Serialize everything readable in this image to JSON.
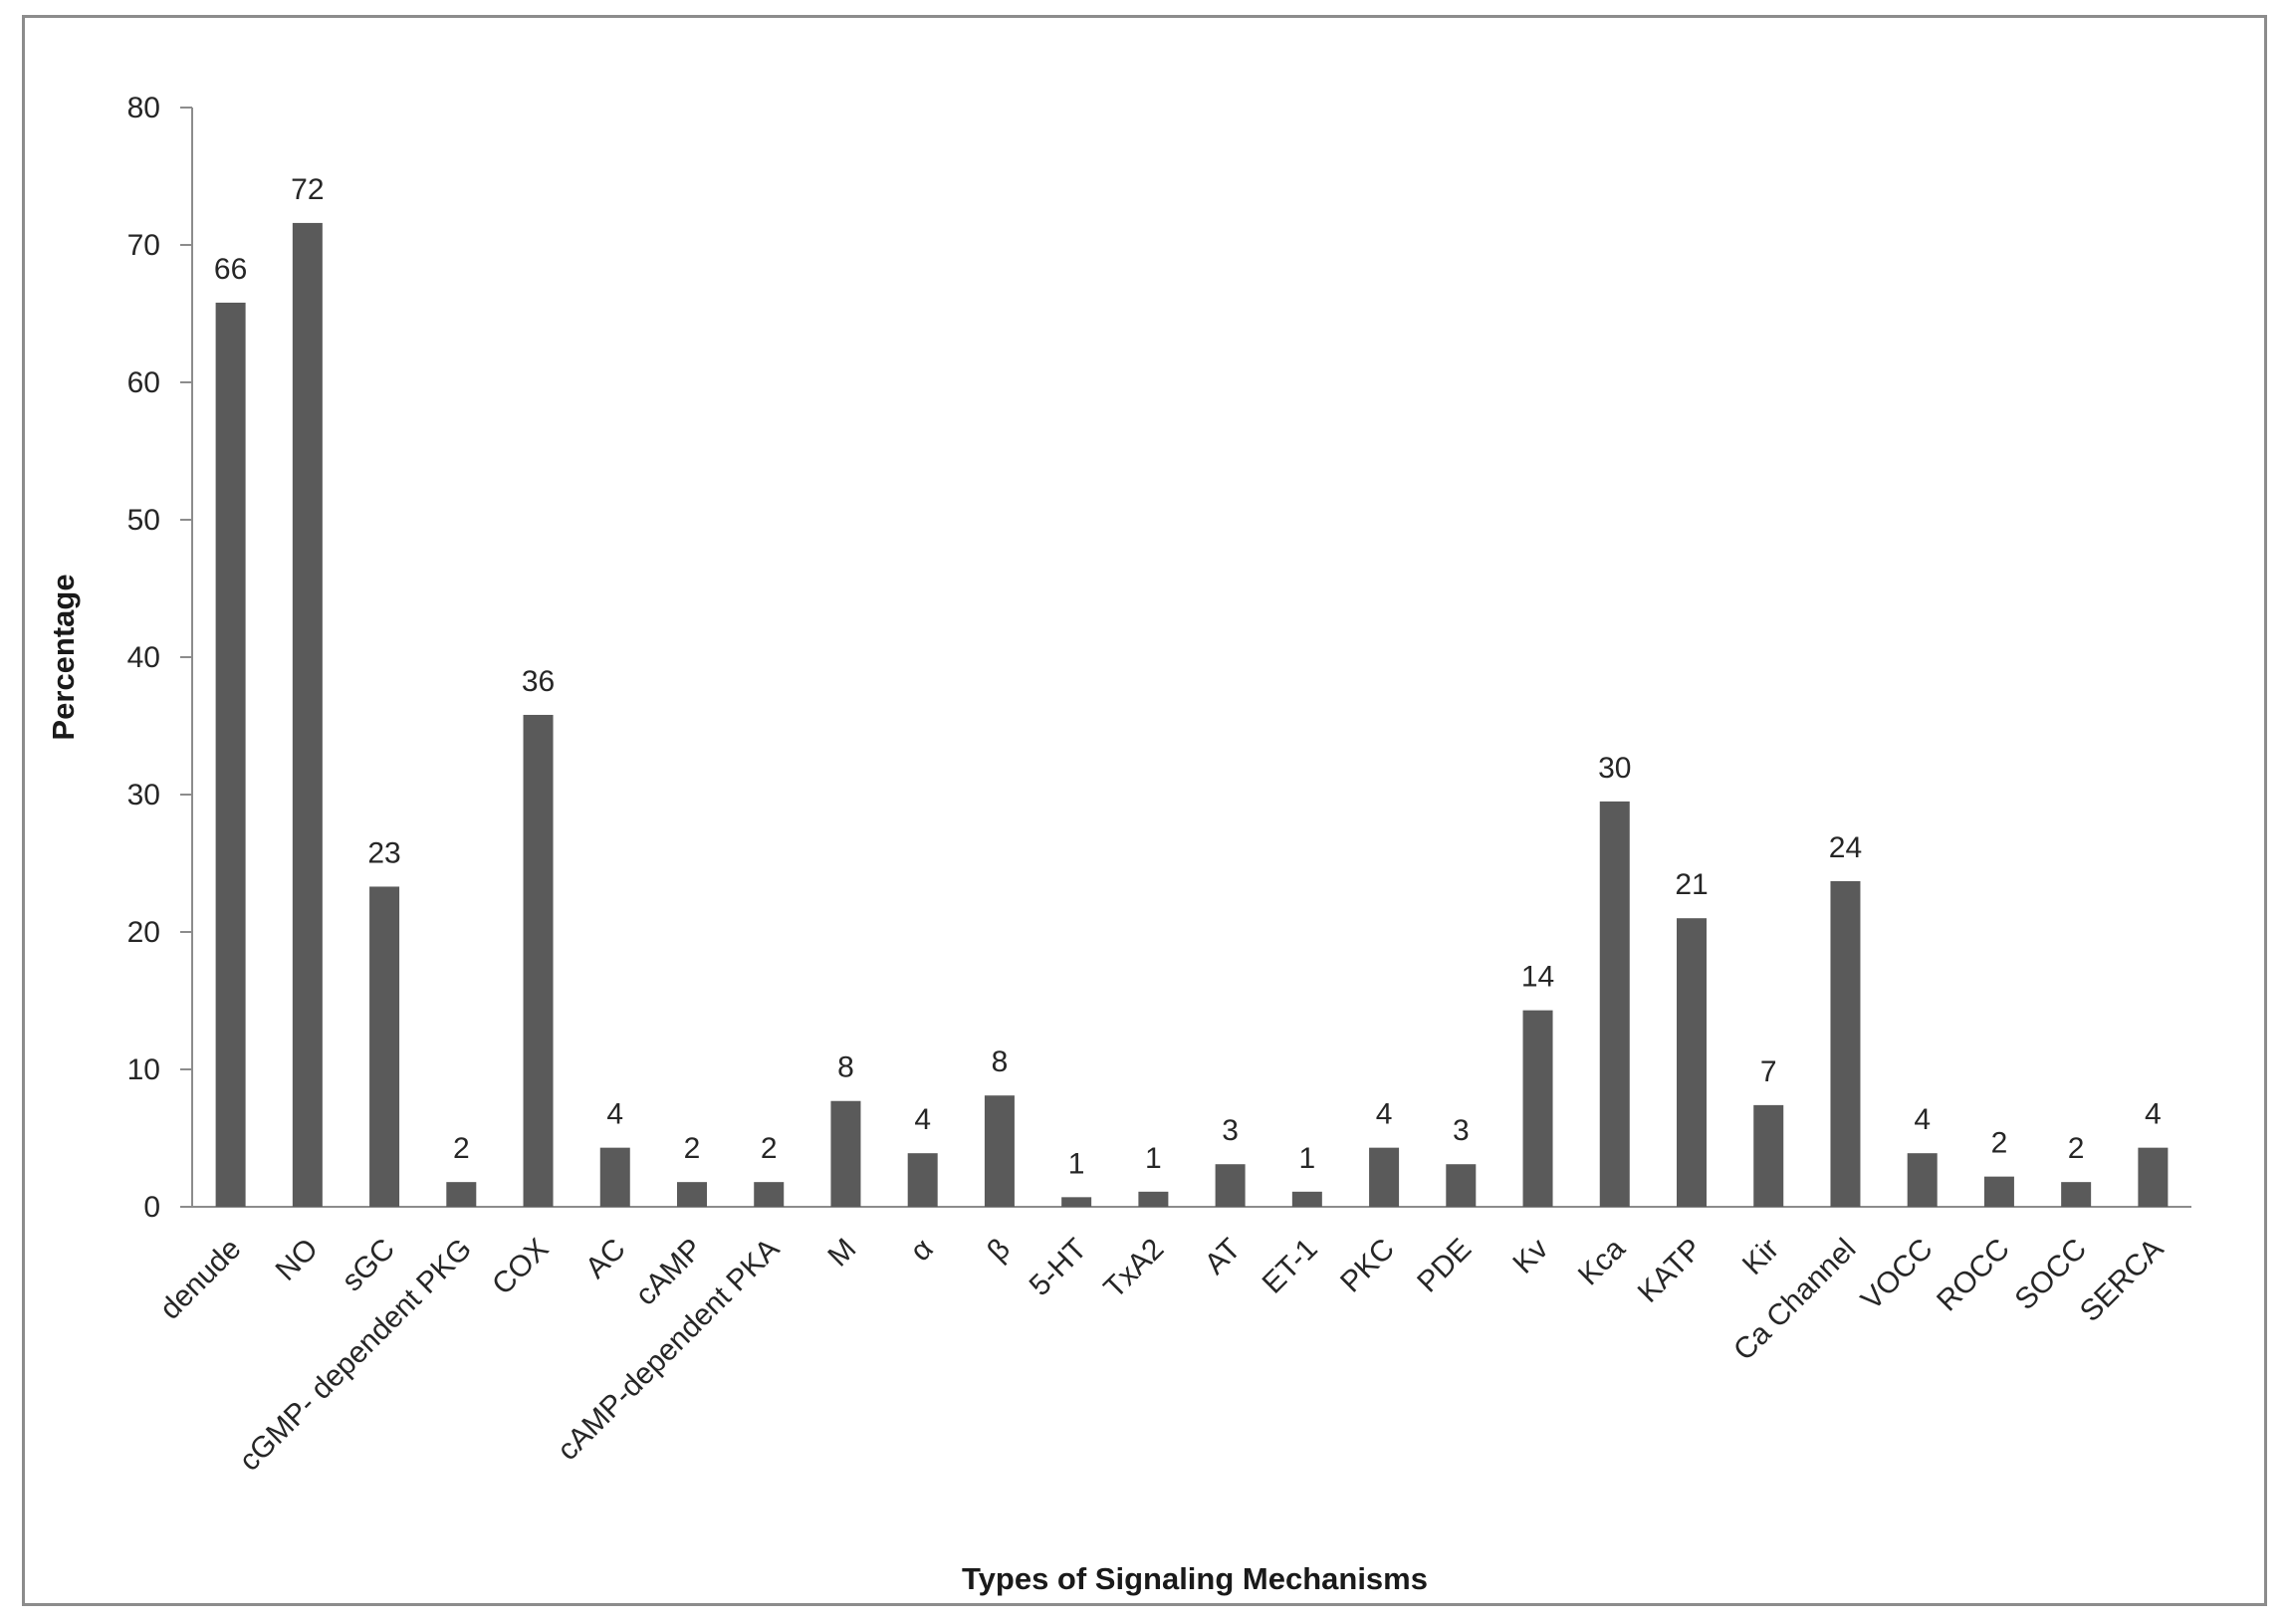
{
  "chart_data": {
    "type": "bar",
    "title": "",
    "xlabel": "Types of Signaling Mechanisms",
    "ylabel": "Percentage",
    "ylim": [
      0,
      80
    ],
    "yticks": [
      0,
      10,
      20,
      30,
      40,
      50,
      60,
      70,
      80
    ],
    "grid": false,
    "legend": "none",
    "bar_color": "#5a5a5a",
    "categories": [
      "denude",
      "NO",
      "sGC",
      "cGMP- dependent PKG",
      "COX",
      "AC",
      "cAMP",
      "cAMP-dependent PKA",
      "M",
      "α",
      "β",
      "5-HT",
      "TxA2",
      "AT",
      "ET-1",
      "PKC",
      "PDE",
      "Kv",
      "Kca",
      "KATP",
      "Kir",
      "Ca Channel",
      "VOCC",
      "ROCC",
      "SOCC",
      "SERCA"
    ],
    "values": [
      65.8,
      71.6,
      23.3,
      1.8,
      35.8,
      4.3,
      1.8,
      1.8,
      7.7,
      3.9,
      8.1,
      0.7,
      1.1,
      3.1,
      1.1,
      4.3,
      3.1,
      14.3,
      29.5,
      21.0,
      7.4,
      23.7,
      3.9,
      2.2,
      1.8,
      4.3
    ],
    "data_labels": [
      "66",
      "72",
      "23",
      "2",
      "36",
      "4",
      "2",
      "2",
      "8",
      "4",
      "8",
      "1",
      "1",
      "3",
      "1",
      "4",
      "3",
      "14",
      "30",
      "21",
      "7",
      "24",
      "4",
      "2",
      "2",
      "4"
    ]
  }
}
